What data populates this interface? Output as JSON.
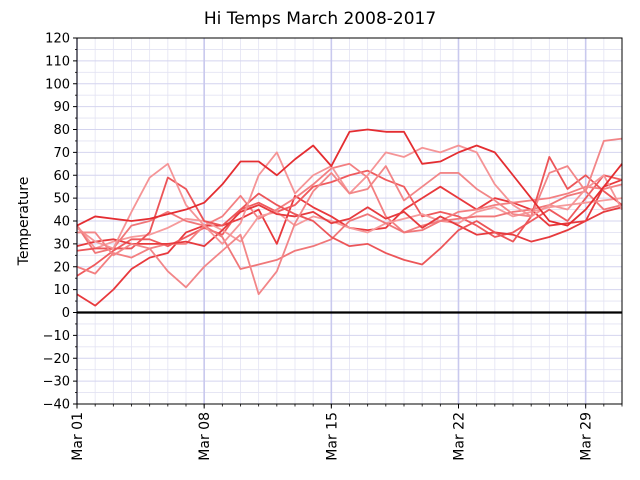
{
  "chart_data": {
    "type": "line",
    "title": "Hi Temps March 2008-2017",
    "xlabel": "",
    "ylabel": "Temperature",
    "x": [
      1,
      2,
      3,
      4,
      5,
      6,
      7,
      8,
      9,
      10,
      11,
      12,
      13,
      14,
      15,
      16,
      17,
      18,
      19,
      20,
      21,
      22,
      23,
      24,
      25,
      26,
      27,
      28,
      29,
      30,
      31
    ],
    "xlim": [
      1,
      31
    ],
    "ylim": [
      -40,
      120
    ],
    "yticks": [
      -40,
      -30,
      -20,
      -10,
      0,
      10,
      20,
      30,
      40,
      50,
      60,
      70,
      80,
      90,
      100,
      110,
      120
    ],
    "xticks": [
      {
        "day": 1,
        "label": "Mar 01"
      },
      {
        "day": 8,
        "label": "Mar 08"
      },
      {
        "day": 15,
        "label": "Mar 15"
      },
      {
        "day": 22,
        "label": "Mar 22"
      },
      {
        "day": 29,
        "label": "Mar 29"
      }
    ],
    "grid": true,
    "zero_line": 0,
    "series": [
      {
        "color": "#e8393d",
        "values": [
          8,
          3,
          10,
          19,
          24,
          26,
          35,
          38,
          38,
          41,
          45,
          30,
          51,
          46,
          42,
          37,
          36,
          37,
          45,
          50,
          55,
          50,
          45,
          50,
          48,
          45,
          38,
          39,
          40,
          55,
          58
        ]
      },
      {
        "color": "#ef5a5d",
        "values": [
          16,
          21,
          27,
          32,
          32,
          29,
          33,
          37,
          34,
          45,
          48,
          44,
          47,
          55,
          57,
          60,
          62,
          58,
          55,
          42,
          44,
          42,
          38,
          33,
          35,
          40,
          45,
          40,
          50,
          60,
          58
        ]
      },
      {
        "color": "#f37f81",
        "values": [
          20,
          17,
          26,
          24,
          28,
          30,
          30,
          38,
          42,
          51,
          41,
          45,
          50,
          56,
          63,
          65,
          59,
          42,
          35,
          38,
          40,
          44,
          45,
          47,
          48,
          49,
          50,
          52,
          55,
          54,
          56
        ]
      },
      {
        "color": "#f69a9b",
        "values": [
          38,
          28,
          31,
          33,
          34,
          37,
          41,
          40,
          36,
          31,
          42,
          44,
          38,
          42,
          40,
          37,
          35,
          39,
          41,
          43,
          40,
          39,
          44,
          46,
          42,
          44,
          46,
          47,
          48,
          49,
          50
        ]
      },
      {
        "color": "#e63b3e",
        "values": [
          29,
          31,
          32,
          30,
          30,
          30,
          31,
          29,
          36,
          44,
          47,
          43,
          42,
          44,
          39,
          41,
          46,
          41,
          44,
          37,
          42,
          38,
          34,
          35,
          34,
          31,
          33,
          36,
          40,
          44,
          46
        ]
      },
      {
        "color": "#f07779",
        "values": [
          38,
          26,
          28,
          38,
          40,
          44,
          40,
          38,
          33,
          19,
          21,
          23,
          27,
          29,
          32,
          40,
          43,
          39,
          35,
          36,
          40,
          41,
          42,
          42,
          44,
          45,
          47,
          51,
          53,
          45,
          47
        ]
      },
      {
        "color": "#ec5558",
        "values": [
          27,
          28,
          28,
          28,
          35,
          59,
          54,
          40,
          38,
          45,
          52,
          47,
          43,
          40,
          33,
          29,
          30,
          26,
          23,
          21,
          28,
          36,
          40,
          35,
          31,
          42,
          68,
          54,
          60,
          53,
          47
        ]
      },
      {
        "color": "#f59496",
        "values": [
          37,
          31,
          28,
          44,
          59,
          65,
          47,
          38,
          30,
          39,
          60,
          70,
          52,
          60,
          64,
          52,
          60,
          70,
          68,
          72,
          70,
          73,
          70,
          56,
          47,
          42,
          47,
          45,
          54,
          60,
          45
        ]
      },
      {
        "color": "#f28688",
        "values": [
          35,
          35,
          25,
          30,
          28,
          18,
          11,
          20,
          27,
          34,
          8,
          18,
          39,
          53,
          61,
          52,
          54,
          64,
          49,
          55,
          61,
          61,
          54,
          49,
          43,
          42,
          61,
          64,
          53,
          75,
          76
        ]
      },
      {
        "color": "#e42d31",
        "values": [
          38,
          42,
          41,
          40,
          41,
          43,
          45,
          48,
          56,
          66,
          66,
          60,
          67,
          73,
          64,
          79,
          80,
          79,
          79,
          65,
          66,
          70,
          73,
          70,
          60,
          50,
          40,
          38,
          45,
          55,
          65
        ]
      }
    ]
  }
}
